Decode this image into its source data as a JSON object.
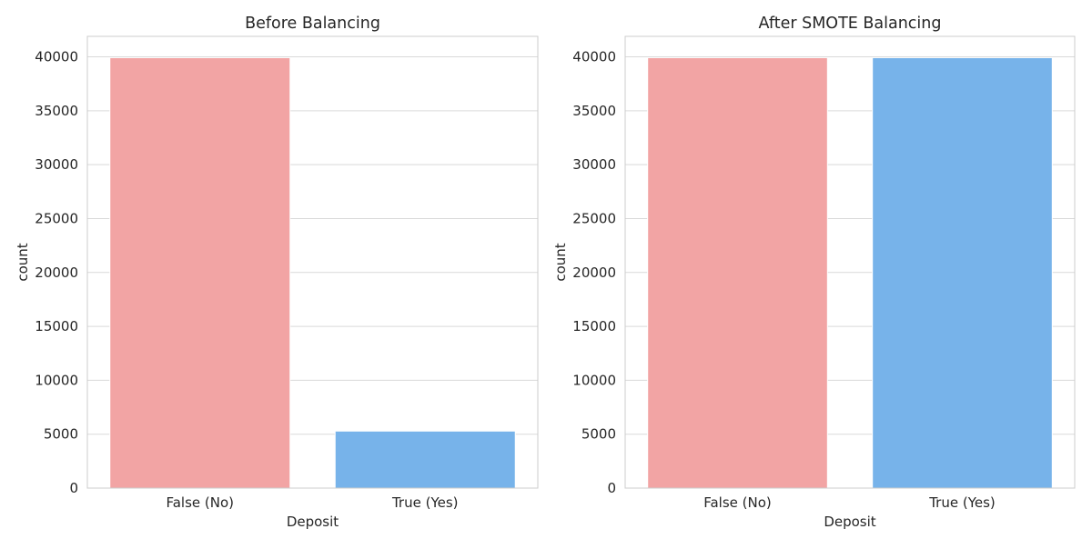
{
  "chart_data": [
    {
      "type": "bar",
      "title": "Before Balancing",
      "xlabel": "Deposit",
      "ylabel": "count",
      "categories": [
        "False (No)",
        "True (Yes)"
      ],
      "values": [
        39922,
        5289
      ],
      "colors": [
        "#f2a4a4",
        "#77b3ea"
      ],
      "ylim": [
        0,
        41900
      ],
      "yticks": [
        0,
        5000,
        10000,
        15000,
        20000,
        25000,
        30000,
        35000,
        40000
      ],
      "grid": true
    },
    {
      "type": "bar",
      "title": "After SMOTE Balancing",
      "xlabel": "Deposit",
      "ylabel": "count",
      "categories": [
        "False (No)",
        "True (Yes)"
      ],
      "values": [
        39922,
        39922
      ],
      "colors": [
        "#f2a4a4",
        "#77b3ea"
      ],
      "ylim": [
        0,
        41900
      ],
      "yticks": [
        0,
        5000,
        10000,
        15000,
        20000,
        25000,
        30000,
        35000,
        40000
      ],
      "grid": true
    }
  ]
}
